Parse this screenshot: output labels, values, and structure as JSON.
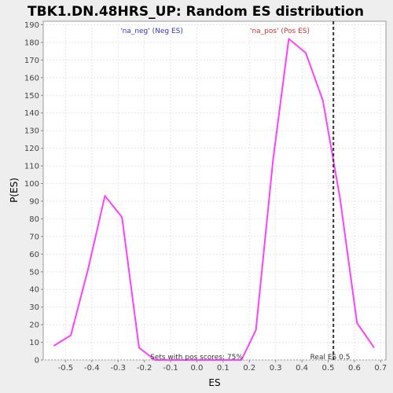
{
  "chart_data": {
    "type": "line",
    "title": "TBK1.DN.48HRS_UP: Random ES distribution",
    "xlabel": "ES",
    "ylabel": "P(ES)",
    "xlim": [
      -0.585,
      0.72
    ],
    "ylim": [
      0,
      192
    ],
    "xticks": [
      -0.5,
      -0.4,
      -0.3,
      -0.2,
      -0.1,
      0.0,
      0.1,
      0.2,
      0.3,
      0.4,
      0.5,
      0.6,
      0.7
    ],
    "xtick_labels": [
      "-0.5",
      "-0.4",
      "-0.3",
      "-0.2",
      "-0.1",
      "0.0",
      "0.1",
      "0.2",
      "0.3",
      "0.4",
      "0.5",
      "0.6",
      "0.7"
    ],
    "yticks": [
      0,
      10,
      20,
      30,
      40,
      50,
      60,
      70,
      80,
      90,
      100,
      110,
      120,
      130,
      140,
      150,
      160,
      170,
      180,
      190
    ],
    "grid": true,
    "series": [
      {
        "color": "#ff40ff",
        "x": [
          -0.545,
          -0.48,
          -0.415,
          -0.35,
          -0.285,
          -0.22,
          -0.16,
          0.17,
          0.225,
          0.29,
          0.35,
          0.415,
          0.48,
          0.545,
          0.61,
          0.675
        ],
        "y": [
          8,
          14,
          51,
          93,
          81,
          7,
          0,
          0,
          17,
          113,
          182,
          174,
          147,
          92,
          21,
          7
        ]
      }
    ],
    "annotations": {
      "neg_label": "'na_neg' (Neg ES)",
      "neg_color": "#3333cc",
      "pos_label": "'na_pos' (Pos ES)",
      "pos_color": "#cc3333",
      "pos_scores_label": "Sets with pos scores: 75%",
      "real_es_label": "Real ES 0.5"
    },
    "real_es": 0.52
  }
}
